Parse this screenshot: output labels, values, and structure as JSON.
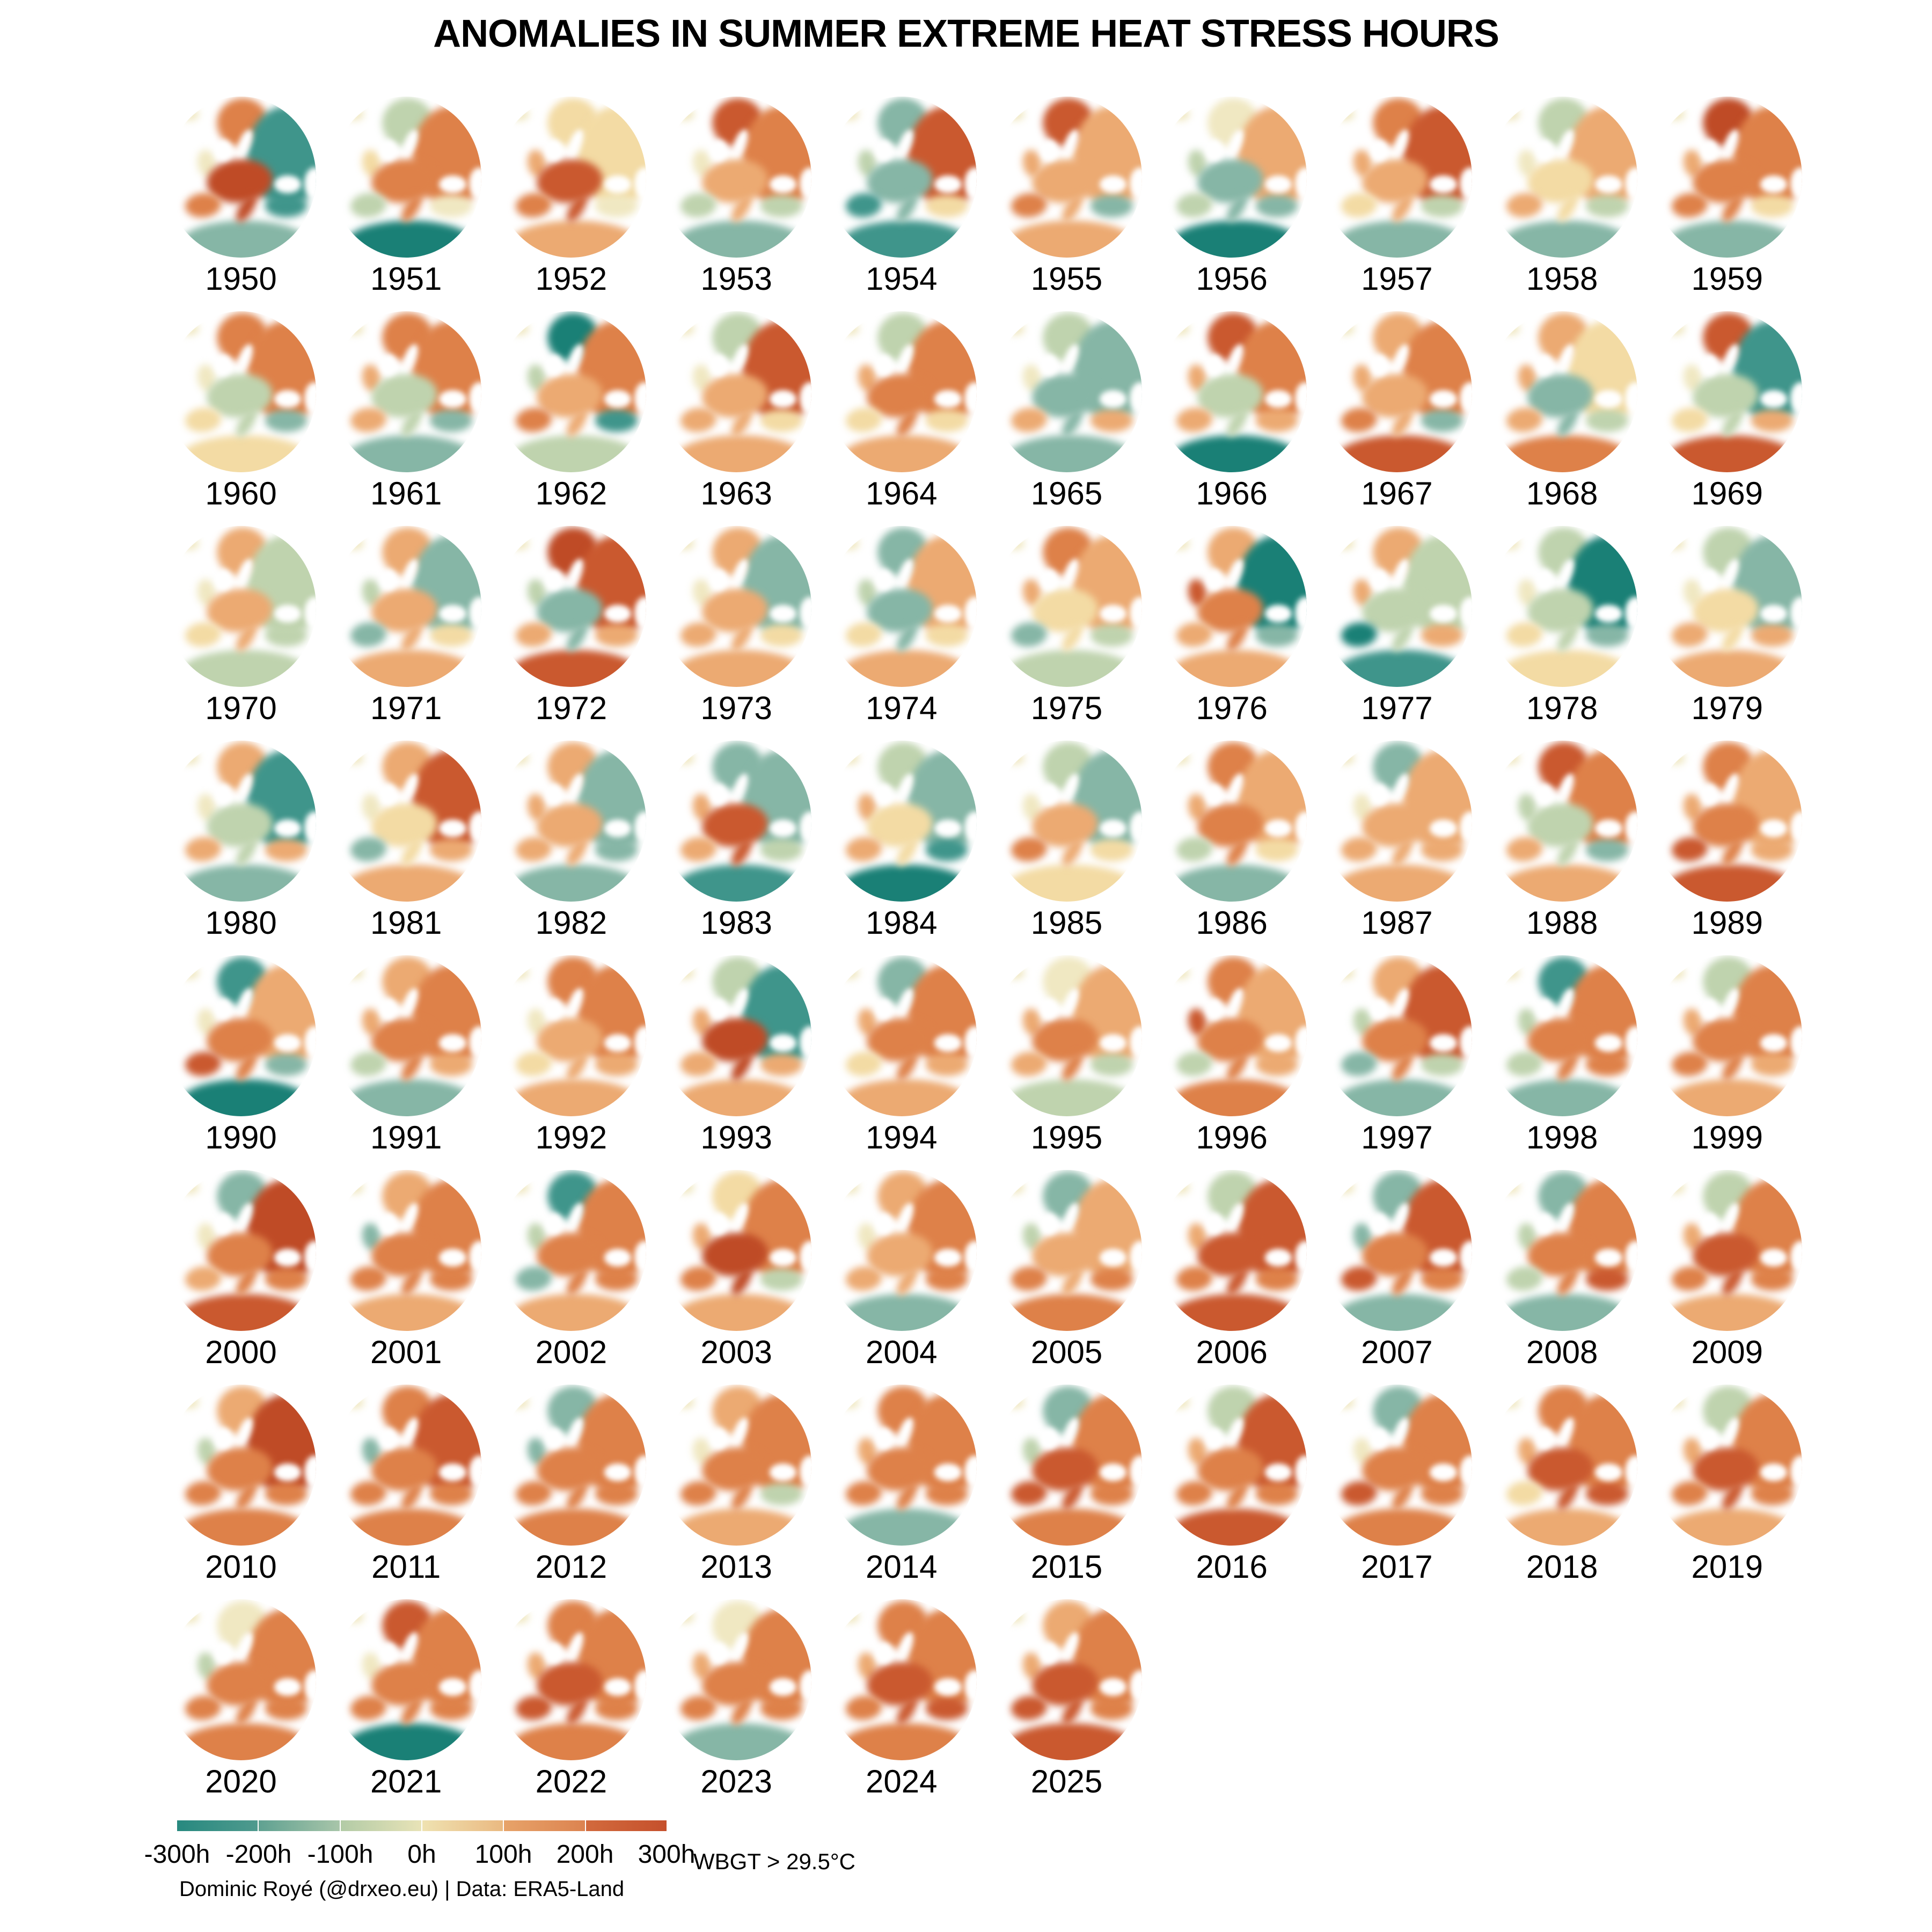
{
  "title": "ANOMALIES IN SUMMER EXTREME HEAT STRESS HOURS",
  "chart_data": {
    "type": "heatmap",
    "subtype": "small-multiples-anomaly-maps-of-europe",
    "variable": "Anomalies in summer extreme heat stress hours",
    "units": "hours",
    "value_domain": [
      -300,
      300
    ],
    "facets": {
      "columns": 10,
      "rows": 8,
      "first_year": 1950,
      "last_year": 2025,
      "count": 76
    },
    "legend": {
      "labels": [
        "-300h",
        "-200h",
        "-100h",
        "0h",
        "100h",
        "200h",
        "300h"
      ],
      "threshold": "WBGT > 29.5°C",
      "segments": [
        [
          "#27897f",
          "#4f9a8e"
        ],
        [
          "#5fa191",
          "#a8c5a9"
        ],
        [
          "#b2cba6",
          "#e8e3b7"
        ],
        [
          "#efe2b1",
          "#eab981"
        ],
        [
          "#e7a369",
          "#dc8350"
        ],
        [
          "#d26a3d",
          "#c5502c"
        ]
      ]
    },
    "credit": "Dominic Royé (@drxeo.eu) | Data: ERA5-Land",
    "palette": {
      "T3": "#1a8076",
      "T2": "#3f958b",
      "T1": "#86b6a6",
      "G": "#bfd3ae",
      "C": "#f0e8c2",
      "Y": "#f3dba4",
      "O1": "#ecaa72",
      "O2": "#de8149",
      "O3": "#ca592f",
      "O4": "#bf4b26"
    },
    "palette_meaning": {
      "T3": "about -300h",
      "T2": "about -200h",
      "T1": "about -120h",
      "G": "about -60h",
      "C": "about 0h",
      "Y": "about +50h",
      "O1": "about +120h",
      "O2": "about +200h",
      "O3": "about +280h",
      "O4": "about +300h"
    },
    "region_order": [
      "iceland",
      "britain",
      "scandinavia",
      "east",
      "central",
      "iberia",
      "africa",
      "anatolia"
    ],
    "years": [
      {
        "year": 1950,
        "regions": [
          "C",
          "C",
          "O2",
          "T2",
          "O4",
          "O2",
          "T1",
          "T2"
        ]
      },
      {
        "year": 1951,
        "regions": [
          "C",
          "Y",
          "G",
          "O2",
          "O2",
          "G",
          "T3",
          "C"
        ]
      },
      {
        "year": 1952,
        "regions": [
          "C",
          "O1",
          "Y",
          "Y",
          "O3",
          "O2",
          "O1",
          "C"
        ]
      },
      {
        "year": 1953,
        "regions": [
          "C",
          "C",
          "O3",
          "O2",
          "O1",
          "G",
          "T1",
          "G"
        ]
      },
      {
        "year": 1954,
        "regions": [
          "C",
          "G",
          "T1",
          "O3",
          "T1",
          "T2",
          "T2",
          "Y"
        ]
      },
      {
        "year": 1955,
        "regions": [
          "C",
          "O1",
          "O3",
          "O1",
          "O1",
          "O2",
          "O1",
          "T1"
        ]
      },
      {
        "year": 1956,
        "regions": [
          "C",
          "G",
          "C",
          "O1",
          "T1",
          "G",
          "T3",
          "T1"
        ]
      },
      {
        "year": 1957,
        "regions": [
          "C",
          "O1",
          "O2",
          "O3",
          "O1",
          "Y",
          "T1",
          "G"
        ]
      },
      {
        "year": 1958,
        "regions": [
          "C",
          "C",
          "G",
          "O1",
          "Y",
          "O1",
          "T1",
          "G"
        ]
      },
      {
        "year": 1959,
        "regions": [
          "C",
          "O1",
          "O4",
          "O2",
          "O2",
          "O2",
          "T1",
          "Y"
        ]
      },
      {
        "year": 1960,
        "regions": [
          "C",
          "C",
          "O2",
          "O2",
          "G",
          "Y",
          "Y",
          "T1"
        ]
      },
      {
        "year": 1961,
        "regions": [
          "C",
          "O1",
          "O2",
          "O2",
          "G",
          "O1",
          "T1",
          "T1"
        ]
      },
      {
        "year": 1962,
        "regions": [
          "C",
          "G",
          "T3",
          "O2",
          "O1",
          "O2",
          "G",
          "T2"
        ]
      },
      {
        "year": 1963,
        "regions": [
          "C",
          "C",
          "G",
          "O3",
          "O1",
          "O1",
          "O1",
          "Y"
        ]
      },
      {
        "year": 1964,
        "regions": [
          "C",
          "O1",
          "G",
          "O2",
          "O2",
          "Y",
          "O1",
          "Y"
        ]
      },
      {
        "year": 1965,
        "regions": [
          "C",
          "C",
          "G",
          "T1",
          "T1",
          "O1",
          "T1",
          "O1"
        ]
      },
      {
        "year": 1966,
        "regions": [
          "C",
          "O1",
          "O3",
          "O2",
          "G",
          "O1",
          "T3",
          "O1"
        ]
      },
      {
        "year": 1967,
        "regions": [
          "C",
          "O1",
          "O1",
          "O2",
          "O1",
          "O2",
          "O3",
          "T1"
        ]
      },
      {
        "year": 1968,
        "regions": [
          "C",
          "O1",
          "O1",
          "Y",
          "T1",
          "O1",
          "O2",
          "G"
        ]
      },
      {
        "year": 1969,
        "regions": [
          "C",
          "C",
          "O3",
          "T2",
          "G",
          "Y",
          "O3",
          "O1"
        ]
      },
      {
        "year": 1970,
        "regions": [
          "C",
          "C",
          "O1",
          "G",
          "O1",
          "Y",
          "G",
          "G"
        ]
      },
      {
        "year": 1971,
        "regions": [
          "C",
          "G",
          "O1",
          "T1",
          "O1",
          "T1",
          "O1",
          "Y"
        ]
      },
      {
        "year": 1972,
        "regions": [
          "C",
          "G",
          "O4",
          "O3",
          "T1",
          "O1",
          "O3",
          "O1"
        ]
      },
      {
        "year": 1973,
        "regions": [
          "C",
          "C",
          "O1",
          "T1",
          "O1",
          "O1",
          "O1",
          "Y"
        ]
      },
      {
        "year": 1974,
        "regions": [
          "C",
          "G",
          "T1",
          "O1",
          "T1",
          "Y",
          "O1",
          "Y"
        ]
      },
      {
        "year": 1975,
        "regions": [
          "C",
          "O1",
          "O2",
          "O1",
          "Y",
          "T1",
          "G",
          "G"
        ]
      },
      {
        "year": 1976,
        "regions": [
          "C",
          "O3",
          "O1",
          "T3",
          "O2",
          "O1",
          "O1",
          "T1"
        ]
      },
      {
        "year": 1977,
        "regions": [
          "C",
          "O1",
          "O1",
          "G",
          "G",
          "T3",
          "T2",
          "O1"
        ]
      },
      {
        "year": 1978,
        "regions": [
          "C",
          "C",
          "G",
          "T3",
          "G",
          "Y",
          "Y",
          "T1"
        ]
      },
      {
        "year": 1979,
        "regions": [
          "C",
          "C",
          "G",
          "T1",
          "Y",
          "O1",
          "O1",
          "O1"
        ]
      },
      {
        "year": 1980,
        "regions": [
          "C",
          "C",
          "O1",
          "T2",
          "G",
          "O1",
          "T1",
          "O1"
        ]
      },
      {
        "year": 1981,
        "regions": [
          "C",
          "C",
          "O1",
          "O3",
          "Y",
          "T1",
          "O1",
          "O1"
        ]
      },
      {
        "year": 1982,
        "regions": [
          "C",
          "O1",
          "O1",
          "T1",
          "O1",
          "O1",
          "T1",
          "T1"
        ]
      },
      {
        "year": 1983,
        "regions": [
          "C",
          "O1",
          "T1",
          "T1",
          "O3",
          "O1",
          "T2",
          "G"
        ]
      },
      {
        "year": 1984,
        "regions": [
          "C",
          "O1",
          "G",
          "T1",
          "Y",
          "O1",
          "T3",
          "T2"
        ]
      },
      {
        "year": 1985,
        "regions": [
          "C",
          "C",
          "G",
          "T1",
          "O1",
          "O2",
          "Y",
          "Y"
        ]
      },
      {
        "year": 1986,
        "regions": [
          "C",
          "O1",
          "O2",
          "O1",
          "O2",
          "G",
          "T1",
          "Y"
        ]
      },
      {
        "year": 1987,
        "regions": [
          "C",
          "C",
          "T1",
          "O1",
          "O1",
          "O1",
          "O1",
          "O1"
        ]
      },
      {
        "year": 1988,
        "regions": [
          "C",
          "G",
          "O3",
          "O2",
          "G",
          "O1",
          "O1",
          "T1"
        ]
      },
      {
        "year": 1989,
        "regions": [
          "C",
          "O1",
          "O2",
          "O1",
          "O2",
          "O3",
          "O3",
          "O1"
        ]
      },
      {
        "year": 1990,
        "regions": [
          "C",
          "C",
          "T2",
          "O1",
          "O2",
          "O3",
          "T3",
          "T1"
        ]
      },
      {
        "year": 1991,
        "regions": [
          "C",
          "O1",
          "O1",
          "O2",
          "O2",
          "G",
          "T1",
          "O1"
        ]
      },
      {
        "year": 1992,
        "regions": [
          "C",
          "C",
          "O2",
          "O2",
          "O1",
          "Y",
          "O1",
          "O1"
        ]
      },
      {
        "year": 1993,
        "regions": [
          "C",
          "O1",
          "G",
          "T2",
          "O4",
          "O1",
          "O1",
          "O1"
        ]
      },
      {
        "year": 1994,
        "regions": [
          "C",
          "O1",
          "T1",
          "O2",
          "O2",
          "Y",
          "O1",
          "O1"
        ]
      },
      {
        "year": 1995,
        "regions": [
          "C",
          "O1",
          "C",
          "O1",
          "O2",
          "O1",
          "G",
          "G"
        ]
      },
      {
        "year": 1996,
        "regions": [
          "C",
          "O3",
          "O2",
          "O1",
          "O2",
          "G",
          "O2",
          "O1"
        ]
      },
      {
        "year": 1997,
        "regions": [
          "C",
          "G",
          "O1",
          "O3",
          "O2",
          "T1",
          "T1",
          "G"
        ]
      },
      {
        "year": 1998,
        "regions": [
          "C",
          "G",
          "T2",
          "O2",
          "O2",
          "G",
          "T1",
          "O2"
        ]
      },
      {
        "year": 1999,
        "regions": [
          "C",
          "O1",
          "G",
          "O2",
          "O2",
          "O2",
          "O1",
          "O1"
        ]
      },
      {
        "year": 2000,
        "regions": [
          "C",
          "C",
          "T1",
          "O4",
          "O2",
          "O1",
          "O3",
          "O2"
        ]
      },
      {
        "year": 2001,
        "regions": [
          "C",
          "T1",
          "O1",
          "O2",
          "O2",
          "O2",
          "O1",
          "O2"
        ]
      },
      {
        "year": 2002,
        "regions": [
          "C",
          "G",
          "T2",
          "O2",
          "O2",
          "T1",
          "O1",
          "O2"
        ]
      },
      {
        "year": 2003,
        "regions": [
          "C",
          "O1",
          "Y",
          "O2",
          "O4",
          "O2",
          "O1",
          "G"
        ]
      },
      {
        "year": 2004,
        "regions": [
          "C",
          "C",
          "O1",
          "O2",
          "O1",
          "O1",
          "T1",
          "O2"
        ]
      },
      {
        "year": 2005,
        "regions": [
          "C",
          "G",
          "T1",
          "O1",
          "O1",
          "O2",
          "O2",
          "O2"
        ]
      },
      {
        "year": 2006,
        "regions": [
          "C",
          "O1",
          "G",
          "O3",
          "O3",
          "O2",
          "O3",
          "O2"
        ]
      },
      {
        "year": 2007,
        "regions": [
          "C",
          "T1",
          "T1",
          "O3",
          "O2",
          "O3",
          "T1",
          "O2"
        ]
      },
      {
        "year": 2008,
        "regions": [
          "C",
          "G",
          "T1",
          "O2",
          "O2",
          "G",
          "T1",
          "O3"
        ]
      },
      {
        "year": 2009,
        "regions": [
          "C",
          "O1",
          "G",
          "O2",
          "O3",
          "O2",
          "O1",
          "O2"
        ]
      },
      {
        "year": 2010,
        "regions": [
          "C",
          "G",
          "O1",
          "O4",
          "O2",
          "O2",
          "O2",
          "O2"
        ]
      },
      {
        "year": 2011,
        "regions": [
          "C",
          "T1",
          "O2",
          "O3",
          "O2",
          "O2",
          "O2",
          "O2"
        ]
      },
      {
        "year": 2012,
        "regions": [
          "C",
          "T1",
          "T1",
          "O2",
          "O2",
          "O2",
          "O2",
          "O2"
        ]
      },
      {
        "year": 2013,
        "regions": [
          "C",
          "C",
          "O1",
          "O2",
          "O2",
          "O2",
          "O1",
          "G"
        ]
      },
      {
        "year": 2014,
        "regions": [
          "C",
          "O1",
          "O2",
          "O2",
          "O2",
          "O2",
          "T1",
          "O2"
        ]
      },
      {
        "year": 2015,
        "regions": [
          "C",
          "G",
          "T1",
          "O2",
          "O3",
          "O3",
          "O2",
          "O2"
        ]
      },
      {
        "year": 2016,
        "regions": [
          "C",
          "O1",
          "G",
          "O3",
          "O2",
          "O2",
          "O3",
          "O2"
        ]
      },
      {
        "year": 2017,
        "regions": [
          "C",
          "C",
          "T1",
          "O2",
          "O2",
          "O3",
          "O2",
          "O2"
        ]
      },
      {
        "year": 2018,
        "regions": [
          "C",
          "O1",
          "O2",
          "O2",
          "O3",
          "Y",
          "O1",
          "O3"
        ]
      },
      {
        "year": 2019,
        "regions": [
          "C",
          "O1",
          "G",
          "O2",
          "O3",
          "O2",
          "O1",
          "O2"
        ]
      },
      {
        "year": 2020,
        "regions": [
          "C",
          "G",
          "C",
          "O2",
          "O2",
          "O2",
          "O2",
          "O2"
        ]
      },
      {
        "year": 2021,
        "regions": [
          "C",
          "C",
          "O3",
          "O2",
          "O2",
          "O2",
          "T3",
          "O2"
        ]
      },
      {
        "year": 2022,
        "regions": [
          "C",
          "O1",
          "O2",
          "O2",
          "O3",
          "O3",
          "O2",
          "O2"
        ]
      },
      {
        "year": 2023,
        "regions": [
          "C",
          "O1",
          "C",
          "O2",
          "O2",
          "O2",
          "T1",
          "O2"
        ]
      },
      {
        "year": 2024,
        "regions": [
          "C",
          "O1",
          "O2",
          "O2",
          "O3",
          "O2",
          "O2",
          "O3"
        ]
      },
      {
        "year": 2025,
        "regions": [
          "C",
          "O1",
          "O1",
          "O2",
          "O3",
          "O3",
          "O3",
          "O2"
        ]
      }
    ]
  }
}
